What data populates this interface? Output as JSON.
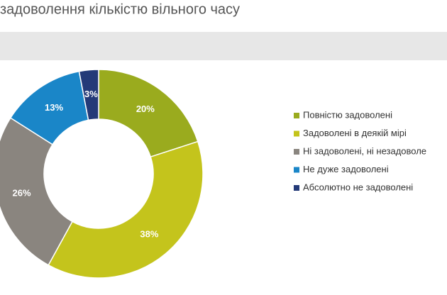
{
  "chart_data": {
    "type": "donut",
    "title": "задоволення кількістю вільного часу",
    "categories": [
      "Повністю задоволені",
      "Задоволені в деякій мірі",
      "Ні задоволені, ні незадоволе",
      "Не дуже задоволені",
      "Абсолютно не задоволені"
    ],
    "values": [
      20,
      38,
      26,
      13,
      3
    ],
    "value_labels": [
      "20%",
      "38%",
      "26%",
      "13%",
      "3%"
    ],
    "colors": [
      "#9aab1e",
      "#c4c41c",
      "#8a857f",
      "#1a86c8",
      "#243a78"
    ]
  }
}
